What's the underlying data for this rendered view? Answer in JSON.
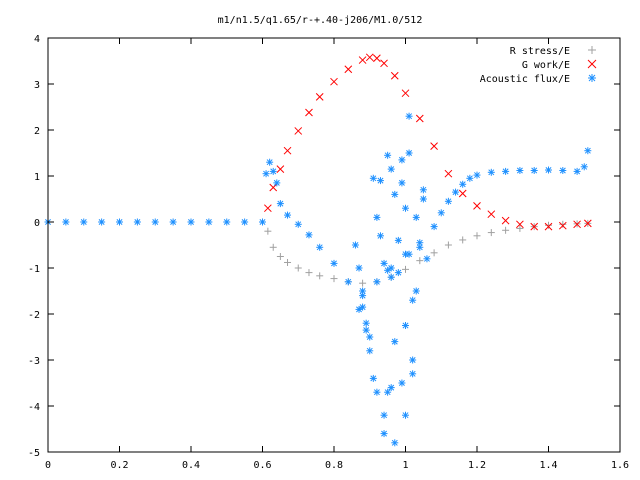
{
  "chart_data": {
    "type": "scatter",
    "title": "m1/n1.5/q1.65/r-+.40-j206/M1.0/512",
    "xlabel": "",
    "ylabel": "",
    "xlim": [
      0,
      1.6
    ],
    "ylim": [
      -5,
      4
    ],
    "xticks": [
      "0",
      "0.2",
      "0.4",
      "0.6",
      "0.8",
      "1",
      "1.2",
      "1.4",
      "1.6"
    ],
    "yticks": [
      "4",
      "3",
      "2",
      "1",
      "0",
      "-1",
      "-2",
      "-3",
      "-4",
      "-5"
    ],
    "grid": false,
    "legend_position": "top-right",
    "series": [
      {
        "name": "R stress/E",
        "marker": "plus",
        "color": "#a0a0a0",
        "x": [
          0.615,
          0.63,
          0.65,
          0.67,
          0.7,
          0.73,
          0.76,
          0.8,
          0.84,
          0.88,
          0.92,
          0.96,
          1.0,
          1.04,
          1.08,
          1.12,
          1.16,
          1.2,
          1.24,
          1.28,
          1.32,
          1.36,
          1.4,
          1.44,
          1.48,
          1.51
        ],
        "y": [
          -0.2,
          -0.55,
          -0.75,
          -0.88,
          -1.0,
          -1.1,
          -1.17,
          -1.23,
          -1.3,
          -1.33,
          -1.3,
          -1.2,
          -1.03,
          -0.84,
          -0.67,
          -0.5,
          -0.39,
          -0.3,
          -0.23,
          -0.18,
          -0.14,
          -0.1,
          -0.07,
          -0.05,
          -0.04,
          -0.03
        ]
      },
      {
        "name": "G work/E",
        "marker": "cross",
        "color": "#ff0000",
        "x": [
          0.615,
          0.63,
          0.65,
          0.67,
          0.7,
          0.73,
          0.76,
          0.8,
          0.84,
          0.88,
          0.9,
          0.92,
          0.94,
          0.97,
          1.0,
          1.04,
          1.08,
          1.12,
          1.16,
          1.2,
          1.24,
          1.28,
          1.32,
          1.36,
          1.4,
          1.44,
          1.48,
          1.51
        ],
        "y": [
          0.3,
          0.75,
          1.15,
          1.55,
          1.98,
          2.38,
          2.72,
          3.05,
          3.32,
          3.52,
          3.58,
          3.56,
          3.45,
          3.18,
          2.8,
          2.25,
          1.65,
          1.05,
          0.62,
          0.35,
          0.17,
          0.03,
          -0.05,
          -0.1,
          -0.1,
          -0.08,
          -0.05,
          -0.03
        ]
      },
      {
        "name": "Acoustic flux/E",
        "marker": "star",
        "color": "#1e90ff",
        "x": [
          0.0,
          0.05,
          0.1,
          0.15,
          0.2,
          0.25,
          0.3,
          0.35,
          0.4,
          0.45,
          0.5,
          0.55,
          0.6,
          0.61,
          0.62,
          0.63,
          0.64,
          0.65,
          0.67,
          0.7,
          0.73,
          0.76,
          0.8,
          0.84,
          0.88,
          0.92,
          0.96,
          1.0,
          1.04,
          1.08,
          1.1,
          1.12,
          1.14,
          1.16,
          1.18,
          1.2,
          1.24,
          1.28,
          1.32,
          1.36,
          1.4,
          1.44,
          1.48,
          1.5,
          1.51,
          0.86,
          0.87,
          0.88,
          0.89,
          0.9,
          0.91,
          0.92,
          0.93,
          0.94,
          0.95,
          0.96,
          0.97,
          0.98,
          0.99,
          1.0,
          1.01,
          1.02,
          1.03,
          1.04,
          1.05,
          1.06,
          0.87,
          0.89,
          0.91,
          0.93,
          0.95,
          0.97,
          0.99,
          1.01,
          1.03,
          1.05,
          0.88,
          0.9,
          0.92,
          0.94,
          0.96,
          0.98,
          1.0,
          1.02,
          0.94,
          0.97,
          1.0,
          0.95,
          0.99,
          1.02,
          0.96,
          1.01
        ],
        "y": [
          0.0,
          0.0,
          0.0,
          0.0,
          0.0,
          0.0,
          0.0,
          0.0,
          0.0,
          0.0,
          0.0,
          0.0,
          0.0,
          1.05,
          1.3,
          1.1,
          0.85,
          0.4,
          0.15,
          -0.05,
          -0.28,
          -0.55,
          -0.9,
          -1.3,
          -1.5,
          -1.3,
          -1.0,
          -0.7,
          -0.45,
          -0.1,
          0.2,
          0.45,
          0.65,
          0.82,
          0.95,
          1.02,
          1.08,
          1.1,
          1.12,
          1.12,
          1.13,
          1.12,
          1.1,
          1.2,
          1.55,
          -0.5,
          -1.0,
          -1.6,
          -2.2,
          -2.8,
          -3.4,
          0.1,
          0.9,
          -0.9,
          1.45,
          -1.2,
          0.6,
          -0.4,
          1.35,
          0.3,
          2.3,
          -1.7,
          0.1,
          -0.55,
          0.5,
          -0.8,
          -1.9,
          -2.35,
          0.95,
          -0.3,
          -1.05,
          -2.6,
          0.85,
          -0.7,
          -1.5,
          0.7,
          -1.85,
          -2.5,
          -3.7,
          -4.6,
          -3.6,
          -1.1,
          -2.25,
          -3.0,
          -4.2,
          -4.8,
          -4.2,
          -3.7,
          -3.5,
          -3.3,
          1.15,
          1.5
        ]
      }
    ]
  }
}
